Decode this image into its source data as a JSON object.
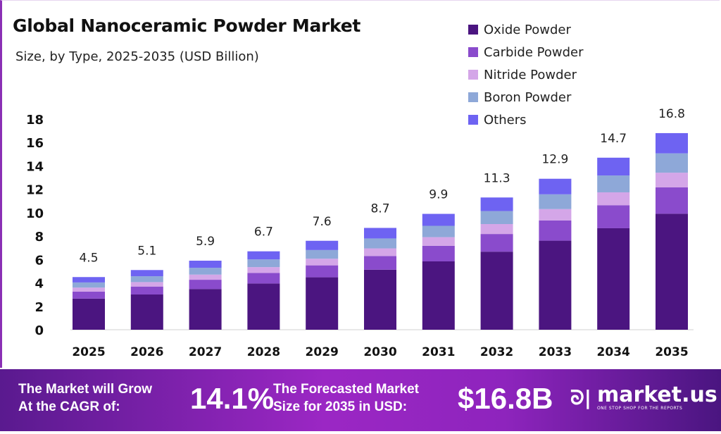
{
  "chart_data": {
    "type": "bar",
    "stacked": true,
    "title": "Global Nanoceramic Powder Market",
    "subtitle": "Size, by Type, 2025-2035 (USD Billion)",
    "xlabel": "",
    "ylabel": "",
    "ylim": [
      0,
      18
    ],
    "yticks": [
      0,
      2,
      4,
      6,
      8,
      10,
      12,
      14,
      16,
      18
    ],
    "grid": false,
    "legend_position": "top-right",
    "categories": [
      "2025",
      "2026",
      "2027",
      "2028",
      "2029",
      "2030",
      "2031",
      "2032",
      "2033",
      "2034",
      "2035"
    ],
    "totals": [
      "4.5",
      "5.1",
      "5.9",
      "6.7",
      "7.6",
      "8.7",
      "9.9",
      "11.3",
      "12.9",
      "14.7",
      "16.8"
    ],
    "series": [
      {
        "name": "Oxide Powder",
        "color": "#4b1580",
        "values": [
          2.66,
          3.01,
          3.48,
          3.95,
          4.48,
          5.13,
          5.84,
          6.67,
          7.61,
          8.67,
          9.91
        ]
      },
      {
        "name": "Carbide Powder",
        "color": "#8a4bcc",
        "values": [
          0.6,
          0.68,
          0.79,
          0.9,
          1.02,
          1.17,
          1.33,
          1.51,
          1.73,
          1.97,
          2.25
        ]
      },
      {
        "name": "Nitride Powder",
        "color": "#d4a6e8",
        "values": [
          0.34,
          0.38,
          0.44,
          0.5,
          0.57,
          0.65,
          0.74,
          0.85,
          0.97,
          1.1,
          1.26
        ]
      },
      {
        "name": "Boron Powder",
        "color": "#8ea8d8",
        "values": [
          0.44,
          0.5,
          0.58,
          0.66,
          0.74,
          0.85,
          0.97,
          1.11,
          1.26,
          1.44,
          1.65
        ]
      },
      {
        "name": "Others",
        "color": "#6e63f2",
        "values": [
          0.46,
          0.53,
          0.61,
          0.69,
          0.79,
          0.9,
          1.02,
          1.16,
          1.33,
          1.52,
          1.73
        ]
      }
    ]
  },
  "footer": {
    "cagr_label_line1": "The Market will Grow",
    "cagr_label_line2": "At the CAGR of:",
    "cagr_value": "14.1%",
    "forecast_label_line1": "The Forecasted Market",
    "forecast_label_line2": "Size for 2035 in USD:",
    "forecast_value": "$16.8B",
    "logo_name": "market.us",
    "logo_tagline": "ONE STOP SHOP FOR THE REPORTS"
  }
}
